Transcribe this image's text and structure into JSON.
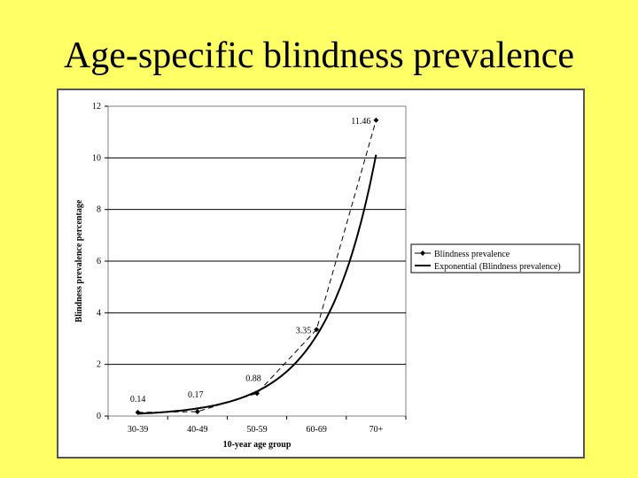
{
  "slide": {
    "title": "Age-specific blindness prevalence"
  },
  "chart_data": {
    "type": "line",
    "categories": [
      "30-39",
      "40-49",
      "50-59",
      "60-69",
      "70+"
    ],
    "series": [
      {
        "name": "Blindness prevalence",
        "values": [
          0.14,
          0.17,
          0.88,
          3.35,
          11.46
        ],
        "data_labels": [
          "0.14",
          "0.17",
          "0.88",
          "3.35",
          "11.46"
        ],
        "style": "dashed-with-markers",
        "color": "#000000"
      },
      {
        "name": "Exponential (Blindness prevalence)",
        "type": "trendline-exponential",
        "color": "#000000"
      }
    ],
    "xlabel": "10-year age group",
    "ylabel": "Blindness prevalence percentage",
    "ylim": [
      0,
      12
    ],
    "yticks": [
      "0",
      "2",
      "4",
      "6",
      "8",
      "10",
      "12"
    ],
    "grid": true,
    "legend_position": "right"
  }
}
